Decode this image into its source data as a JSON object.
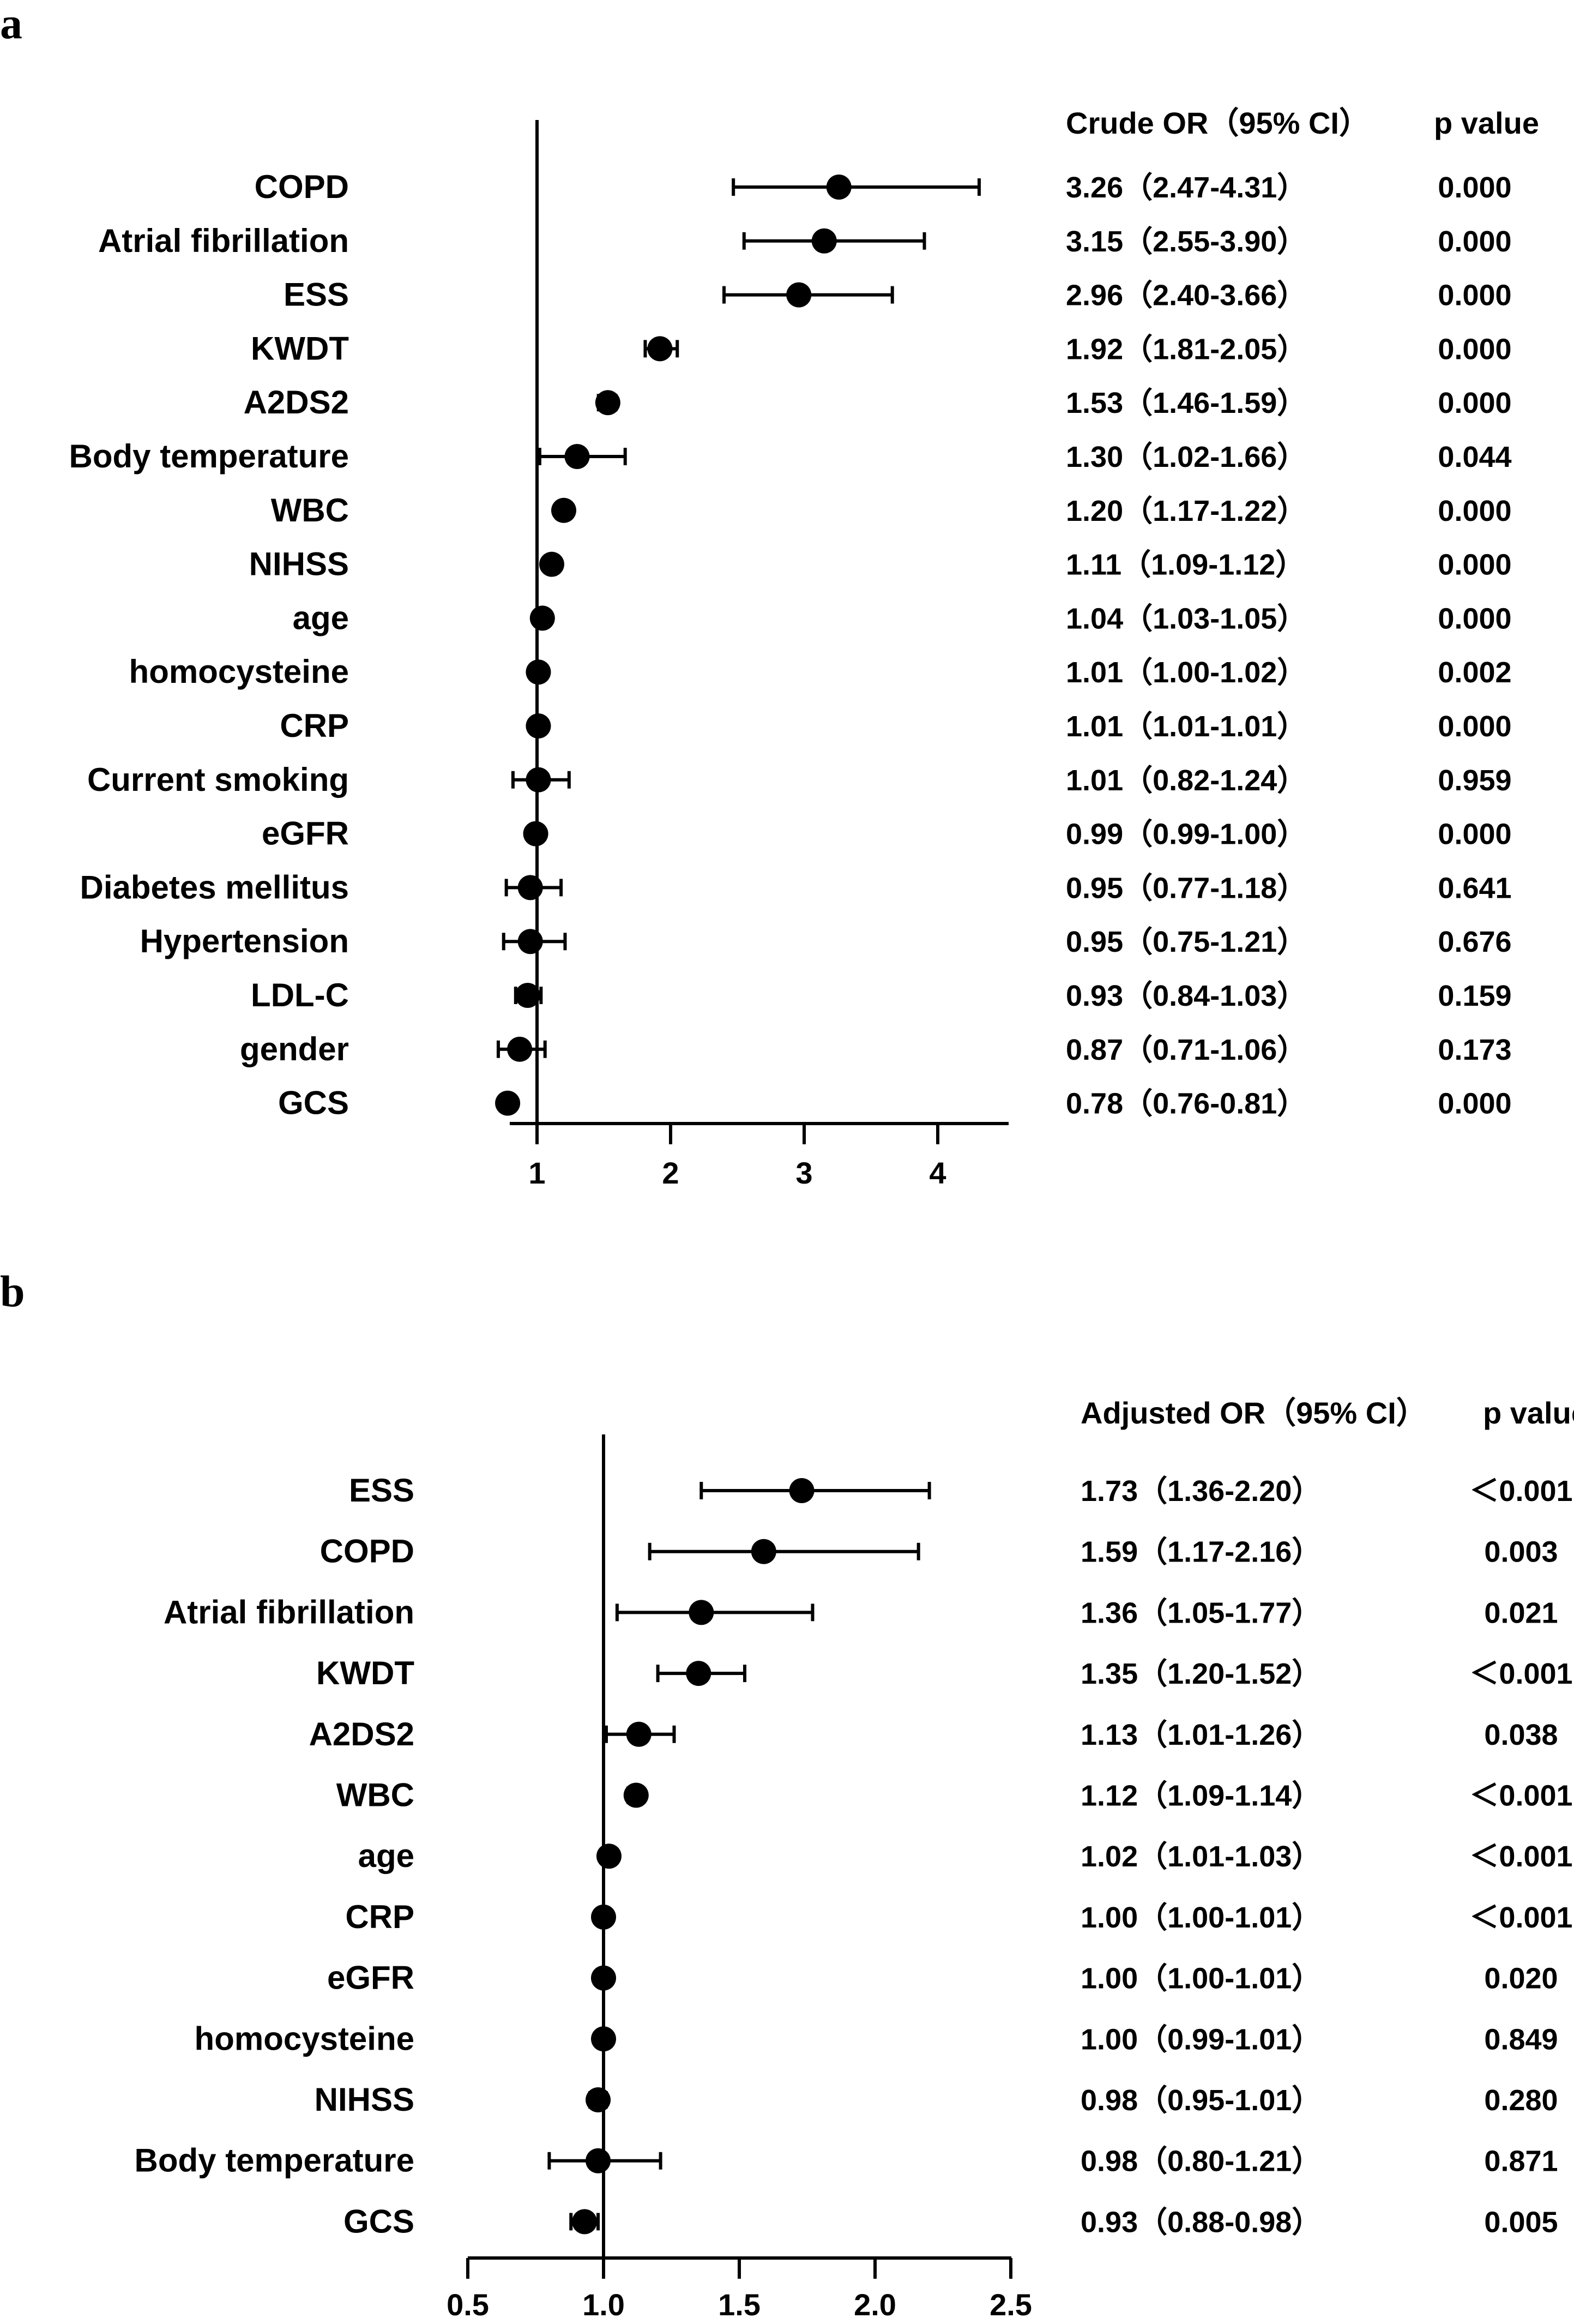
{
  "chart_data": [
    {
      "type": "forest",
      "panel_label": "a",
      "column_headers": {
        "or": "Crude OR（95% CI）",
        "p": "p value"
      },
      "reference_line": 1,
      "xlim": [
        0.2,
        4.5
      ],
      "x_ticks": [
        1,
        2,
        3,
        4
      ],
      "x_tick_labels": [
        "1",
        "2",
        "3",
        "4"
      ],
      "rows": [
        {
          "label": "COPD",
          "or": 3.26,
          "low": 2.47,
          "high": 4.31,
          "ci_text": "3.26（2.47-4.31）",
          "p_text": "0.000"
        },
        {
          "label": "Atrial fibrillation",
          "or": 3.15,
          "low": 2.55,
          "high": 3.9,
          "ci_text": "3.15（2.55-3.90）",
          "p_text": "0.000"
        },
        {
          "label": "ESS",
          "or": 2.96,
          "low": 2.4,
          "high": 3.66,
          "ci_text": "2.96（2.40-3.66）",
          "p_text": "0.000"
        },
        {
          "label": "KWDT",
          "or": 1.92,
          "low": 1.81,
          "high": 2.05,
          "ci_text": "1.92（1.81-2.05）",
          "p_text": "0.000"
        },
        {
          "label": "A2DS2",
          "or": 1.53,
          "low": 1.46,
          "high": 1.59,
          "ci_text": "1.53（1.46-1.59）",
          "p_text": "0.000"
        },
        {
          "label": "Body temperature",
          "or": 1.3,
          "low": 1.02,
          "high": 1.66,
          "ci_text": "1.30（1.02-1.66）",
          "p_text": "0.044"
        },
        {
          "label": "WBC",
          "or": 1.2,
          "low": 1.17,
          "high": 1.22,
          "ci_text": "1.20（1.17-1.22）",
          "p_text": "0.000"
        },
        {
          "label": "NIHSS",
          "or": 1.11,
          "low": 1.09,
          "high": 1.12,
          "ci_text": "1.11（1.09-1.12）",
          "p_text": "0.000"
        },
        {
          "label": "age",
          "or": 1.04,
          "low": 1.03,
          "high": 1.05,
          "ci_text": "1.04（1.03-1.05）",
          "p_text": "0.000"
        },
        {
          "label": "homocysteine",
          "or": 1.01,
          "low": 1.0,
          "high": 1.02,
          "ci_text": "1.01（1.00-1.02）",
          "p_text": "0.002"
        },
        {
          "label": "CRP",
          "or": 1.01,
          "low": 1.01,
          "high": 1.01,
          "ci_text": "1.01（1.01-1.01）",
          "p_text": "0.000"
        },
        {
          "label": "Current smoking",
          "or": 1.01,
          "low": 0.82,
          "high": 1.24,
          "ci_text": "1.01（0.82-1.24）",
          "p_text": "0.959"
        },
        {
          "label": "eGFR",
          "or": 0.99,
          "low": 0.99,
          "high": 1.0,
          "ci_text": "0.99（0.99-1.00）",
          "p_text": "0.000"
        },
        {
          "label": "Diabetes mellitus",
          "or": 0.95,
          "low": 0.77,
          "high": 1.18,
          "ci_text": "0.95（0.77-1.18）",
          "p_text": "0.641"
        },
        {
          "label": "Hypertension",
          "or": 0.95,
          "low": 0.75,
          "high": 1.21,
          "ci_text": "0.95（0.75-1.21）",
          "p_text": "0.676"
        },
        {
          "label": "LDL-C",
          "or": 0.93,
          "low": 0.84,
          "high": 1.03,
          "ci_text": "0.93（0.84-1.03）",
          "p_text": "0.159"
        },
        {
          "label": "gender",
          "or": 0.87,
          "low": 0.71,
          "high": 1.06,
          "ci_text": "0.87（0.71-1.06）",
          "p_text": "0.173"
        },
        {
          "label": "GCS",
          "or": 0.78,
          "low": 0.76,
          "high": 0.81,
          "ci_text": "0.78（0.76-0.81）",
          "p_text": "0.000"
        }
      ]
    },
    {
      "type": "forest",
      "panel_label": "b",
      "column_headers": {
        "or": "Adjusted OR（95% CI）",
        "p": "p value"
      },
      "reference_line": 1.0,
      "xlim": [
        0.5,
        2.5
      ],
      "x_ticks": [
        0.5,
        1.0,
        1.5,
        2.0,
        2.5
      ],
      "x_tick_labels": [
        "0.5",
        "1.0",
        "1.5",
        "2.0",
        "2.5"
      ],
      "rows": [
        {
          "label": "ESS",
          "or": 1.73,
          "low": 1.36,
          "high": 2.2,
          "ci_text": "1.73（1.36-2.20）",
          "p_text": "＜0.001"
        },
        {
          "label": "COPD",
          "or": 1.59,
          "low": 1.17,
          "high": 2.16,
          "ci_text": "1.59（1.17-2.16）",
          "p_text": "0.003"
        },
        {
          "label": "Atrial fibrillation",
          "or": 1.36,
          "low": 1.05,
          "high": 1.77,
          "ci_text": "1.36（1.05-1.77）",
          "p_text": "0.021"
        },
        {
          "label": "KWDT",
          "or": 1.35,
          "low": 1.2,
          "high": 1.52,
          "ci_text": "1.35（1.20-1.52）",
          "p_text": "＜0.001"
        },
        {
          "label": "A2DS2",
          "or": 1.13,
          "low": 1.01,
          "high": 1.26,
          "ci_text": "1.13（1.01-1.26）",
          "p_text": "0.038"
        },
        {
          "label": "WBC",
          "or": 1.12,
          "low": 1.09,
          "high": 1.14,
          "ci_text": "1.12（1.09-1.14）",
          "p_text": "＜0.001"
        },
        {
          "label": "age",
          "or": 1.02,
          "low": 1.01,
          "high": 1.03,
          "ci_text": "1.02（1.01-1.03）",
          "p_text": "＜0.001"
        },
        {
          "label": "CRP",
          "or": 1.0,
          "low": 1.0,
          "high": 1.01,
          "ci_text": "1.00（1.00-1.01）",
          "p_text": "＜0.001"
        },
        {
          "label": "eGFR",
          "or": 1.0,
          "low": 1.0,
          "high": 1.01,
          "ci_text": "1.00（1.00-1.01）",
          "p_text": "0.020"
        },
        {
          "label": "homocysteine",
          "or": 1.0,
          "low": 0.99,
          "high": 1.01,
          "ci_text": "1.00（0.99-1.01）",
          "p_text": "0.849"
        },
        {
          "label": "NIHSS",
          "or": 0.98,
          "low": 0.95,
          "high": 1.01,
          "ci_text": "0.98（0.95-1.01）",
          "p_text": "0.280"
        },
        {
          "label": "Body temperature",
          "or": 0.98,
          "low": 0.8,
          "high": 1.21,
          "ci_text": "0.98（0.80-1.21）",
          "p_text": "0.871"
        },
        {
          "label": "GCS",
          "or": 0.93,
          "low": 0.88,
          "high": 0.98,
          "ci_text": "0.93（0.88-0.98）",
          "p_text": "0.005"
        }
      ]
    }
  ]
}
